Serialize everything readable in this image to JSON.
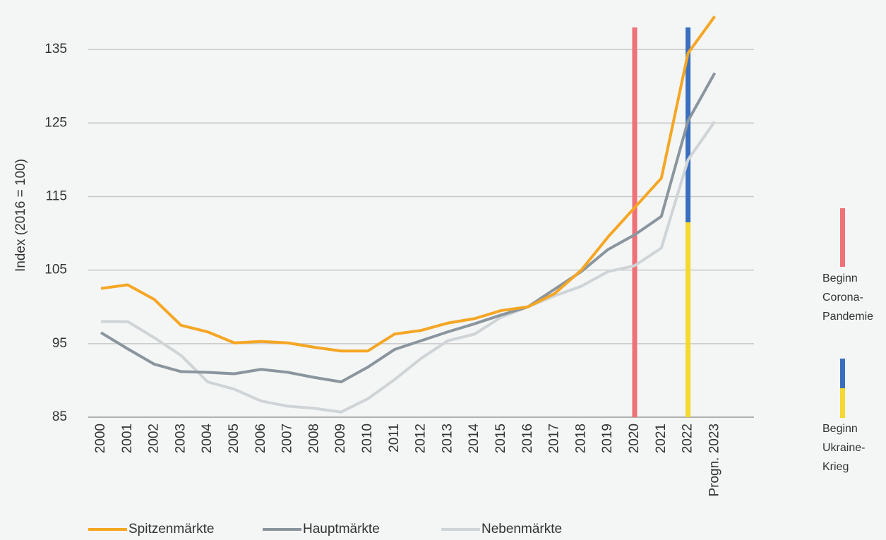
{
  "chart_data": {
    "type": "line",
    "y_label": "Index (2016 = 100)",
    "categories": [
      "2000",
      "2001",
      "2002",
      "2003",
      "2004",
      "2005",
      "2006",
      "2007",
      "2008",
      "2009",
      "2010",
      "2011",
      "2012",
      "2013",
      "2014",
      "2015",
      "2016",
      "2017",
      "2018",
      "2019",
      "2020",
      "2021",
      "2022",
      "Progn. 2023"
    ],
    "series": [
      {
        "name": "Spitzenmärkte",
        "color": "#f5a623",
        "values": [
          102.5,
          103,
          101,
          97.5,
          96.6,
          95.1,
          95.3,
          95.1,
          94.5,
          94,
          94,
          96.3,
          96.8,
          97.8,
          98.4,
          99.5,
          100,
          101.8,
          105,
          109.5,
          113.5,
          117.5,
          134.5,
          139.5
        ]
      },
      {
        "name": "Hauptmärkte",
        "color": "#8a959e",
        "values": [
          96.5,
          94.3,
          92.2,
          91.2,
          91.1,
          90.9,
          91.5,
          91.1,
          90.4,
          89.8,
          91.8,
          94.2,
          95.4,
          96.6,
          97.7,
          98.9,
          100,
          102.4,
          104.8,
          107.8,
          109.8,
          112.3,
          125.3,
          131.8
        ]
      },
      {
        "name": "Nebenmärkte",
        "color": "#cfd4d7",
        "values": [
          98,
          98,
          95.8,
          93.4,
          89.8,
          88.8,
          87.2,
          86.5,
          86.2,
          85.7,
          87.5,
          90.1,
          93,
          95.4,
          96.3,
          98.6,
          100,
          101.5,
          102.8,
          104.8,
          105.6,
          108,
          120,
          125.2
        ]
      }
    ],
    "ylim": [
      85,
      140
    ],
    "yticks": [
      85,
      95,
      105,
      115,
      125,
      135
    ],
    "grid": true,
    "events": [
      {
        "category": 20,
        "lines": [
          "Beginn",
          "Corona-",
          "Pandemie"
        ],
        "segments": [
          {
            "color": "#f07178",
            "range": [
              85,
              138
            ]
          }
        ]
      },
      {
        "category": 22,
        "lines": [
          "Beginn",
          "Ukraine-",
          "Krieg"
        ],
        "segments": [
          {
            "color": "#f5d830",
            "range": [
              85,
              111.5
            ]
          },
          {
            "color": "#3a6fbf",
            "range": [
              111.5,
              138
            ]
          }
        ]
      }
    ]
  }
}
